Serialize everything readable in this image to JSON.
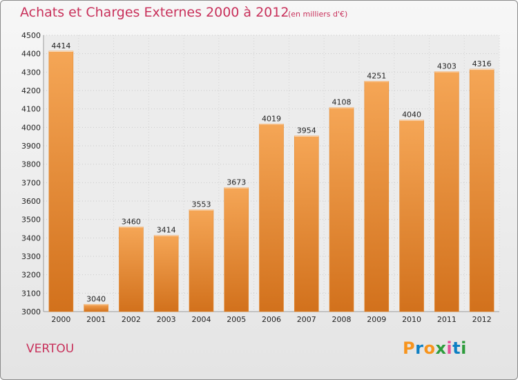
{
  "header": {
    "title": "Achats et Charges Externes 2000 à 2012",
    "subtitle": "(en milliers d'€)"
  },
  "footer": {
    "commune": "VERTOU",
    "logo_letters": [
      "P",
      "r",
      "o",
      "x",
      "i",
      "t",
      "i"
    ],
    "logo_colors": [
      "#f7941d",
      "#0d7fc3",
      "#f7941d",
      "#2e9c3c",
      "#e64f97",
      "#0d7fc3",
      "#2e9c3c"
    ]
  },
  "chart_data": {
    "type": "bar",
    "title": "Achats et Charges Externes 2000 à 2012",
    "subtitle": "(en milliers d'€)",
    "xlabel": "",
    "ylabel": "",
    "categories": [
      "2000",
      "2001",
      "2002",
      "2003",
      "2004",
      "2005",
      "2006",
      "2007",
      "2008",
      "2009",
      "2010",
      "2011",
      "2012"
    ],
    "values": [
      4414,
      3040,
      3460,
      3414,
      3553,
      3673,
      4019,
      3954,
      4108,
      4251,
      4040,
      4303,
      4316
    ],
    "ylim": [
      3000,
      4500
    ],
    "yticks": [
      3000,
      3100,
      3200,
      3300,
      3400,
      3500,
      3600,
      3700,
      3800,
      3900,
      4000,
      4100,
      4200,
      4300,
      4400,
      4500
    ],
    "grid": true,
    "bar_color": "#f09a3e",
    "bar_color_dark": "#d2711c"
  }
}
